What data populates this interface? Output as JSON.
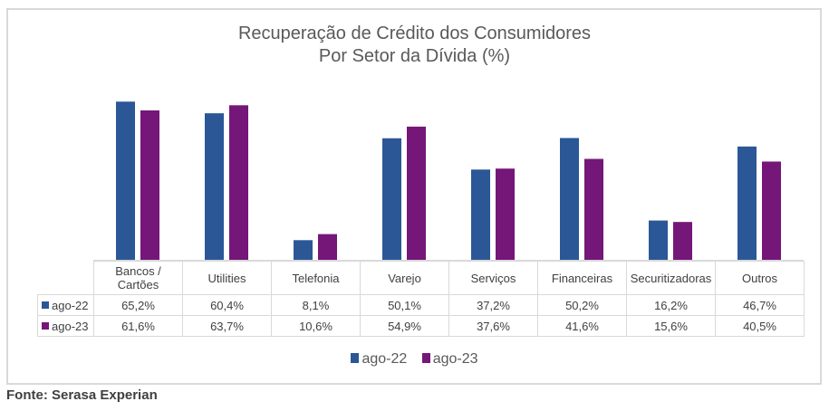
{
  "chart_data": {
    "type": "bar",
    "title": "Recuperação de Crédito dos Consumidores",
    "subtitle": "Por Setor da Dívida (%)",
    "xlabel": "",
    "ylabel": "",
    "ylim": [
      0,
      70
    ],
    "grid": false,
    "legend_position": "bottom",
    "categories": [
      "Bancos / Cartões",
      "Utilities",
      "Telefonia",
      "Varejo",
      "Serviços",
      "Financeiras",
      "Securitizadoras",
      "Outros"
    ],
    "category_lines": [
      [
        "Bancos /",
        "Cartões"
      ],
      [
        "Utilities"
      ],
      [
        "Telefonia"
      ],
      [
        "Varejo"
      ],
      [
        "Serviços"
      ],
      [
        "Financeiras"
      ],
      [
        "Securitizadoras"
      ],
      [
        "Outros"
      ]
    ],
    "series": [
      {
        "name": "ago-22",
        "color": "#2b5797",
        "values": [
          65.2,
          60.4,
          8.1,
          50.1,
          37.2,
          50.2,
          16.2,
          46.7
        ],
        "labels": [
          "65,2%",
          "60,4%",
          "8,1%",
          "50,1%",
          "37,2%",
          "50,2%",
          "16,2%",
          "46,7%"
        ]
      },
      {
        "name": "ago-23",
        "color": "#751679",
        "values": [
          61.6,
          63.7,
          10.6,
          54.9,
          37.6,
          41.6,
          15.6,
          40.5
        ],
        "labels": [
          "61,6%",
          "63,7%",
          "10,6%",
          "54,9%",
          "37,6%",
          "41,6%",
          "15,6%",
          "40,5%"
        ]
      }
    ]
  },
  "source": "Fonte: Serasa Experian"
}
